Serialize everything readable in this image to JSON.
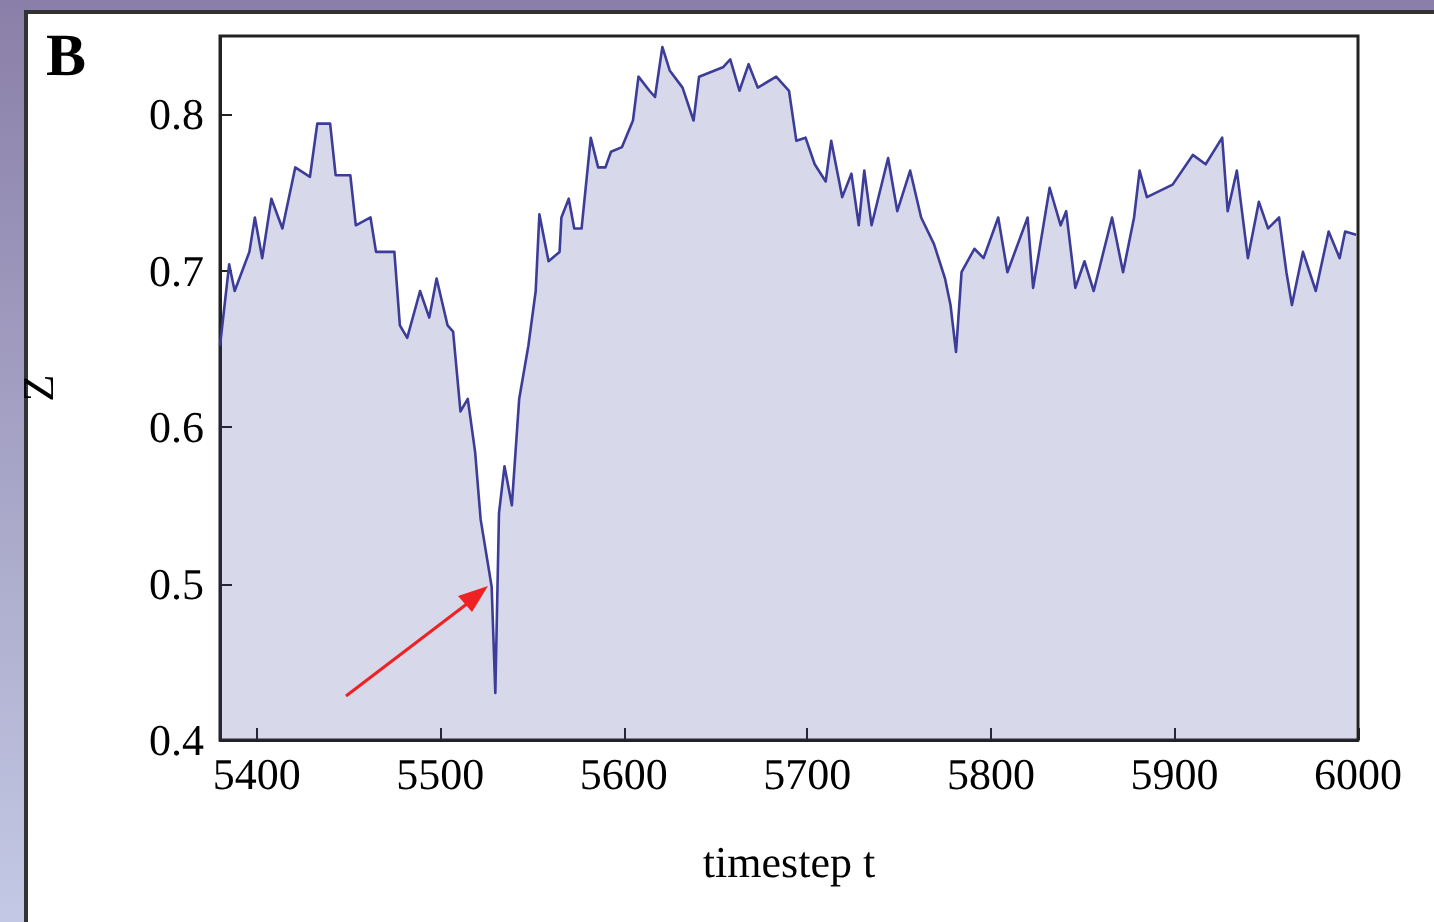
{
  "chart_data": {
    "type": "area",
    "title": "B",
    "xlabel": "timestep t",
    "ylabel": "Z",
    "xlim": [
      5380,
      6000
    ],
    "xticks": [
      5400,
      5500,
      5600,
      5700,
      5800,
      5900,
      6000
    ],
    "ylim": [
      0.4,
      0.85
    ],
    "yticks": [
      0.4,
      0.5,
      0.6,
      0.7,
      0.8
    ],
    "grid": false,
    "series": [
      {
        "color": "#3d3d99",
        "x": [
          5380,
          5385,
          5388,
          5396,
          5399,
          5403,
          5408,
          5414,
          5421,
          5429,
          5433,
          5440,
          5443,
          5451,
          5454,
          5462,
          5465,
          5475,
          5478,
          5482,
          5489,
          5494,
          5498,
          5504,
          5507,
          5511,
          5515,
          5519,
          5522,
          5528,
          5530,
          5532,
          5535,
          5539,
          5543,
          5548,
          5552,
          5554,
          5559,
          5565,
          5566,
          5570,
          5573,
          5577,
          5582,
          5586,
          5590,
          5593,
          5599,
          5605,
          5608,
          5614,
          5617,
          5621,
          5625,
          5632,
          5638,
          5641,
          5654,
          5658,
          5663,
          5668,
          5673,
          5683,
          5690,
          5694,
          5699,
          5704,
          5710,
          5713,
          5719,
          5724,
          5728,
          5731,
          5735,
          5744,
          5749,
          5756,
          5762,
          5769,
          5775,
          5778,
          5781,
          5784,
          5791,
          5796,
          5804,
          5809,
          5820,
          5823,
          5832,
          5838,
          5841,
          5846,
          5851,
          5856,
          5866,
          5872,
          5878,
          5881,
          5885,
          5899,
          5910,
          5917,
          5926,
          5929,
          5934,
          5940,
          5946,
          5951,
          5957,
          5961,
          5964,
          5970,
          5977,
          5984,
          5990,
          5993,
          5999
        ],
        "values": [
          0.652,
          0.704,
          0.687,
          0.712,
          0.734,
          0.708,
          0.746,
          0.727,
          0.766,
          0.76,
          0.794,
          0.794,
          0.761,
          0.761,
          0.729,
          0.734,
          0.712,
          0.712,
          0.665,
          0.657,
          0.687,
          0.67,
          0.695,
          0.665,
          0.661,
          0.61,
          0.618,
          0.584,
          0.541,
          0.498,
          0.43,
          0.545,
          0.575,
          0.55,
          0.618,
          0.652,
          0.687,
          0.736,
          0.706,
          0.712,
          0.734,
          0.746,
          0.727,
          0.727,
          0.785,
          0.766,
          0.766,
          0.776,
          0.779,
          0.796,
          0.824,
          0.815,
          0.811,
          0.843,
          0.828,
          0.817,
          0.796,
          0.824,
          0.83,
          0.835,
          0.815,
          0.832,
          0.817,
          0.824,
          0.815,
          0.783,
          0.785,
          0.768,
          0.757,
          0.783,
          0.747,
          0.762,
          0.729,
          0.764,
          0.729,
          0.772,
          0.738,
          0.764,
          0.734,
          0.717,
          0.695,
          0.678,
          0.648,
          0.699,
          0.714,
          0.708,
          0.734,
          0.699,
          0.734,
          0.689,
          0.753,
          0.729,
          0.738,
          0.689,
          0.706,
          0.687,
          0.734,
          0.699,
          0.734,
          0.764,
          0.747,
          0.755,
          0.774,
          0.768,
          0.785,
          0.738,
          0.764,
          0.708,
          0.744,
          0.727,
          0.734,
          0.699,
          0.678,
          0.712,
          0.687,
          0.725,
          0.708,
          0.725,
          0.723
        ]
      }
    ]
  }
}
